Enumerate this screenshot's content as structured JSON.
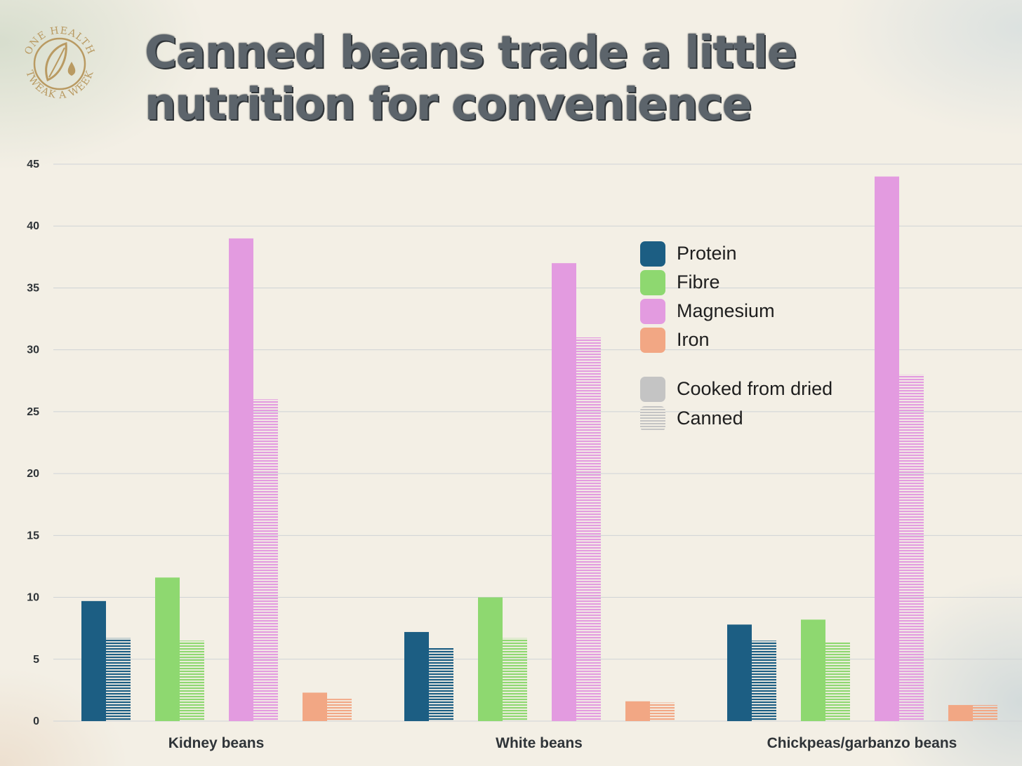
{
  "logo": {
    "top_text": "ONE HEALTH",
    "bottom_text": "TWEAK A WEEK",
    "color": "#b99a62"
  },
  "title": {
    "line1": "Canned beans trade a little",
    "line2": "nutrition for convenience"
  },
  "legend": {
    "nutrients": [
      {
        "label": "Protein",
        "color": "#1c5e83"
      },
      {
        "label": "Fibre",
        "color": "#8ed870"
      },
      {
        "label": "Magnesium",
        "color": "#e39be0"
      },
      {
        "label": "Iron",
        "color": "#f2a784"
      }
    ],
    "styles": [
      {
        "label": "Cooked from dried",
        "pattern": "solid"
      },
      {
        "label": "Canned",
        "pattern": "striped"
      }
    ]
  },
  "chart_data": {
    "type": "bar",
    "title": "Canned beans trade a little nutrition for convenience",
    "xlabel": "",
    "ylabel": "",
    "ylim": [
      0,
      45
    ],
    "yticks": [
      0,
      5,
      10,
      15,
      20,
      25,
      30,
      35,
      40,
      45
    ],
    "grid": true,
    "legend_position": "top-right",
    "categories": [
      "Kidney beans",
      "White beans",
      "Chickpeas/garbanzo beans"
    ],
    "series": [
      {
        "name": "Protein",
        "variant": "Cooked from dried",
        "color": "#1c5e83",
        "values": [
          9.7,
          7.2,
          7.8
        ]
      },
      {
        "name": "Protein",
        "variant": "Canned",
        "color": "#1c5e83",
        "values": [
          6.7,
          5.9,
          6.5
        ]
      },
      {
        "name": "Fibre",
        "variant": "Cooked from dried",
        "color": "#8ed870",
        "values": [
          11.6,
          10.0,
          8.2
        ]
      },
      {
        "name": "Fibre",
        "variant": "Canned",
        "color": "#8ed870",
        "values": [
          6.5,
          6.7,
          6.4
        ]
      },
      {
        "name": "Magnesium",
        "variant": "Cooked from dried",
        "color": "#e39be0",
        "values": [
          39,
          37,
          44
        ]
      },
      {
        "name": "Magnesium",
        "variant": "Canned",
        "color": "#e39be0",
        "values": [
          26,
          31,
          28
        ]
      },
      {
        "name": "Iron",
        "variant": "Cooked from dried",
        "color": "#f2a784",
        "values": [
          2.3,
          1.6,
          1.3
        ]
      },
      {
        "name": "Iron",
        "variant": "Canned",
        "color": "#f2a784",
        "values": [
          1.8,
          1.5,
          1.3
        ]
      }
    ]
  }
}
